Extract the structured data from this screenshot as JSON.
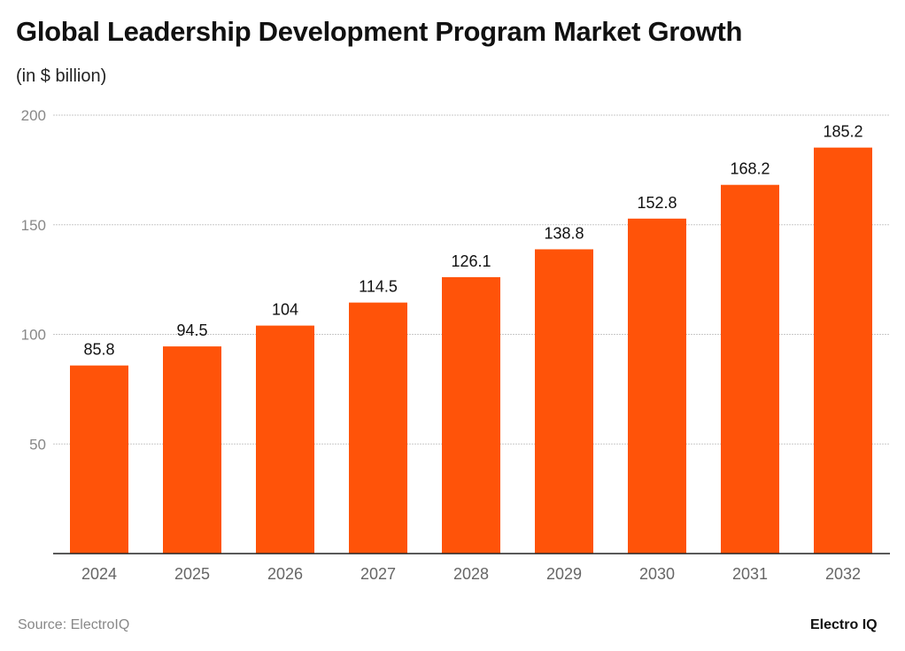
{
  "chart_data": {
    "type": "bar",
    "title": "Global Leadership Development Program Market Growth",
    "subtitle": "(in $ billion)",
    "categories": [
      "2024",
      "2025",
      "2026",
      "2027",
      "2028",
      "2029",
      "2030",
      "2031",
      "2032"
    ],
    "values": [
      85.8,
      94.5,
      104,
      114.5,
      126.1,
      138.8,
      152.8,
      168.2,
      185.2
    ],
    "data_labels": [
      "85.8",
      "94.5",
      "104",
      "114.5",
      "126.1",
      "138.8",
      "152.8",
      "168.2",
      "185.2"
    ],
    "ylim": [
      0,
      200
    ],
    "yticks": [
      50,
      100,
      150,
      200
    ],
    "grid": true,
    "xlabel": "",
    "ylabel": "",
    "bar_color": "#FF5309"
  },
  "source": "Source: ElectroIQ",
  "logo": "Electro IQ"
}
